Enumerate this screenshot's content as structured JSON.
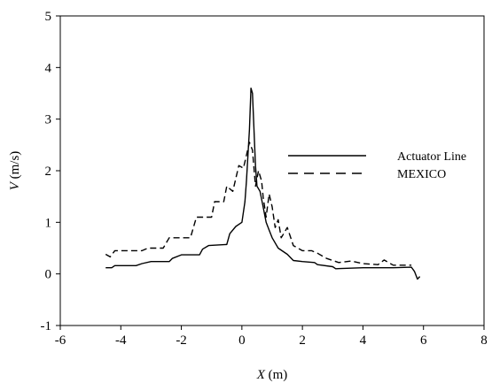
{
  "chart_data": {
    "type": "line",
    "xlabel_var": "X",
    "xlabel_unit": "(m)",
    "ylabel_var": "V",
    "ylabel_unit": "(m/s)",
    "xlim": [
      -6,
      8
    ],
    "ylim": [
      -1,
      5
    ],
    "xticks": [
      -6,
      -4,
      -2,
      0,
      2,
      4,
      6,
      8
    ],
    "yticks": [
      -1,
      0,
      1,
      2,
      3,
      4,
      5
    ],
    "grid": false,
    "legend_position": "right",
    "series": [
      {
        "name": "Actuator Line",
        "style": "solid",
        "points": [
          [
            -4.5,
            0.12
          ],
          [
            -4.3,
            0.12
          ],
          [
            -4.2,
            0.16
          ],
          [
            -3.5,
            0.16
          ],
          [
            -3.3,
            0.2
          ],
          [
            -3.0,
            0.24
          ],
          [
            -2.4,
            0.24
          ],
          [
            -2.3,
            0.3
          ],
          [
            -2.0,
            0.37
          ],
          [
            -1.4,
            0.37
          ],
          [
            -1.3,
            0.48
          ],
          [
            -1.1,
            0.55
          ],
          [
            -0.5,
            0.57
          ],
          [
            -0.4,
            0.78
          ],
          [
            -0.2,
            0.92
          ],
          [
            0.0,
            1.0
          ],
          [
            0.1,
            1.4
          ],
          [
            0.15,
            1.8
          ],
          [
            0.2,
            2.3
          ],
          [
            0.25,
            2.8
          ],
          [
            0.3,
            3.6
          ],
          [
            0.35,
            3.5
          ],
          [
            0.4,
            2.8
          ],
          [
            0.45,
            2.1
          ],
          [
            0.5,
            1.7
          ],
          [
            0.6,
            1.6
          ],
          [
            0.7,
            1.3
          ],
          [
            0.8,
            1.0
          ],
          [
            0.9,
            0.85
          ],
          [
            1.0,
            0.7
          ],
          [
            1.2,
            0.5
          ],
          [
            1.5,
            0.38
          ],
          [
            1.7,
            0.26
          ],
          [
            2.0,
            0.24
          ],
          [
            2.4,
            0.22
          ],
          [
            2.5,
            0.18
          ],
          [
            3.0,
            0.14
          ],
          [
            3.1,
            0.1
          ],
          [
            4.0,
            0.12
          ],
          [
            5.0,
            0.12
          ],
          [
            5.6,
            0.13
          ],
          [
            5.7,
            0.05
          ],
          [
            5.8,
            -0.1
          ],
          [
            5.88,
            -0.05
          ]
        ]
      },
      {
        "name": "MEXICO",
        "style": "dashed",
        "points": [
          [
            -4.5,
            0.38
          ],
          [
            -4.35,
            0.33
          ],
          [
            -4.2,
            0.45
          ],
          [
            -3.3,
            0.45
          ],
          [
            -3.1,
            0.5
          ],
          [
            -2.6,
            0.5
          ],
          [
            -2.4,
            0.7
          ],
          [
            -1.7,
            0.7
          ],
          [
            -1.5,
            1.1
          ],
          [
            -1.0,
            1.1
          ],
          [
            -0.9,
            1.4
          ],
          [
            -0.6,
            1.4
          ],
          [
            -0.5,
            1.7
          ],
          [
            -0.3,
            1.6
          ],
          [
            -0.1,
            2.1
          ],
          [
            0.05,
            2.05
          ],
          [
            0.15,
            2.3
          ],
          [
            0.25,
            2.55
          ],
          [
            0.35,
            2.4
          ],
          [
            0.45,
            1.7
          ],
          [
            0.55,
            2.0
          ],
          [
            0.65,
            1.8
          ],
          [
            0.7,
            1.5
          ],
          [
            0.8,
            1.1
          ],
          [
            0.9,
            1.55
          ],
          [
            1.0,
            1.3
          ],
          [
            1.1,
            0.9
          ],
          [
            1.2,
            1.05
          ],
          [
            1.3,
            0.7
          ],
          [
            1.5,
            0.9
          ],
          [
            1.7,
            0.55
          ],
          [
            2.0,
            0.45
          ],
          [
            2.3,
            0.45
          ],
          [
            2.5,
            0.4
          ],
          [
            2.8,
            0.3
          ],
          [
            3.2,
            0.22
          ],
          [
            3.6,
            0.25
          ],
          [
            4.0,
            0.2
          ],
          [
            4.5,
            0.18
          ],
          [
            4.7,
            0.27
          ],
          [
            5.0,
            0.17
          ],
          [
            5.6,
            0.17
          ]
        ]
      }
    ]
  }
}
